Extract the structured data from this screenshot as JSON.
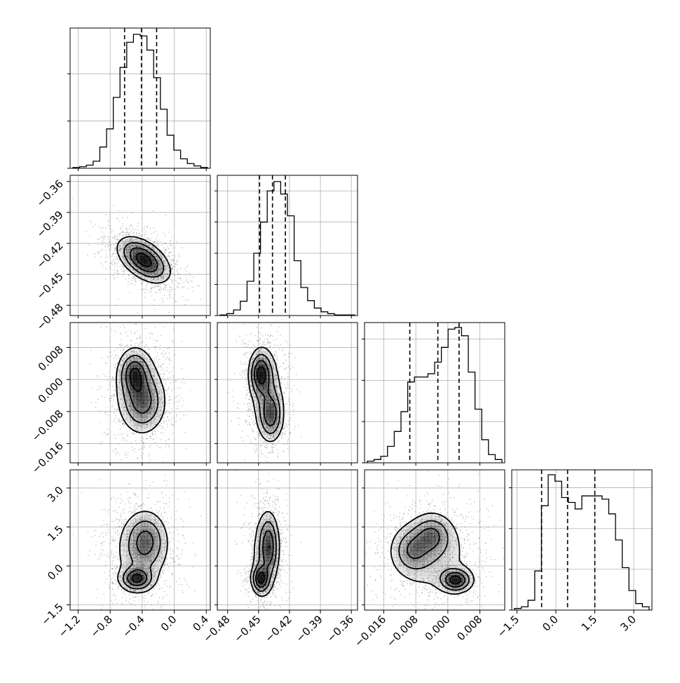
{
  "chart_data": {
    "type": "corner",
    "parameters": [
      {
        "ticks": [
          -1.2,
          -0.8,
          -0.4,
          0.0,
          0.4
        ],
        "tick_labels": [
          "−1.2",
          "−0.8",
          "−0.4",
          "0.0",
          "0.4"
        ],
        "range": [
          -1.3,
          0.45
        ],
        "quantiles": [
          -0.62,
          -0.41,
          -0.22
        ]
      },
      {
        "ticks": [
          -0.48,
          -0.45,
          -0.42,
          -0.39,
          -0.36
        ],
        "tick_labels": [
          "−0.48",
          "−0.45",
          "−0.42",
          "−0.39",
          "−0.36"
        ],
        "range": [
          -0.49,
          -0.354
        ],
        "quantiles": [
          -0.449,
          -0.4365,
          -0.424
        ]
      },
      {
        "ticks": [
          -0.016,
          -0.008,
          0.0,
          0.008
        ],
        "tick_labels": [
          "−0.016",
          "−0.008",
          "0.000",
          "0.008"
        ],
        "range": [
          -0.0208,
          0.0142
        ],
        "quantiles": [
          -0.0095,
          -0.0025,
          0.0028
        ]
      },
      {
        "ticks": [
          -1.5,
          0.0,
          1.5,
          3.0
        ],
        "tick_labels": [
          "−1.5",
          "0.0",
          "1.5",
          "3.0"
        ],
        "range": [
          -1.7,
          3.7
        ],
        "quantiles": [
          -0.55,
          0.45,
          1.5
        ]
      }
    ],
    "histograms": [
      [
        1,
        2,
        4,
        9,
        27,
        50,
        90,
        128,
        160,
        170,
        168,
        150,
        115,
        75,
        42,
        23,
        12,
        6,
        3,
        1
      ],
      [
        1,
        3,
        9,
        23,
        55,
        100,
        150,
        200,
        215,
        195,
        160,
        88,
        45,
        24,
        12,
        6,
        3,
        1,
        1,
        1
      ],
      [
        2,
        4,
        8,
        20,
        38,
        62,
        98,
        104,
        104,
        108,
        122,
        140,
        162,
        164,
        154,
        110,
        65,
        28,
        10,
        4
      ],
      [
        2,
        4,
        12,
        48,
        128,
        166,
        158,
        138,
        132,
        124,
        140,
        140,
        140,
        136,
        118,
        86,
        52,
        24,
        8,
        4
      ]
    ],
    "hist_ymax": [
      178,
      225,
      170,
      172
    ],
    "hist_yticks": [
      [
        0,
        60,
        120
      ],
      [
        0,
        50,
        100,
        150,
        200
      ],
      [
        0,
        50,
        100,
        150
      ],
      [
        0,
        50,
        100,
        150
      ]
    ],
    "joint": [
      {
        "row": 1,
        "col": 0,
        "rho": -0.5,
        "modes": [
          {
            "mx": -0.38,
            "my": -0.436,
            "sx": 0.17,
            "sy": 0.0115,
            "w": 1
          }
        ]
      },
      {
        "row": 2,
        "col": 0,
        "rho": 0,
        "modes": [
          {
            "mx": -0.5,
            "my": 0.0015,
            "sx": 0.1,
            "sy": 0.003,
            "w": 0.9
          },
          {
            "mx": -0.38,
            "my": -0.006,
            "sx": 0.15,
            "sy": 0.004,
            "w": 0.7
          },
          {
            "mx": -0.45,
            "my": -0.002,
            "sx": 0.17,
            "sy": 0.006,
            "w": 0.45
          }
        ]
      },
      {
        "row": 2,
        "col": 1,
        "rho": 0,
        "modes": [
          {
            "mx": -0.448,
            "my": 0.0015,
            "sx": 0.006,
            "sy": 0.0032,
            "w": 1
          },
          {
            "mx": -0.438,
            "my": -0.009,
            "sx": 0.0065,
            "sy": 0.0035,
            "w": 0.8
          },
          {
            "mx": -0.442,
            "my": -0.003,
            "sx": 0.009,
            "sy": 0.006,
            "w": 0.4
          }
        ]
      },
      {
        "row": 3,
        "col": 0,
        "rho": 0,
        "modes": [
          {
            "mx": -0.47,
            "my": -0.5,
            "sx": 0.11,
            "sy": 0.25,
            "w": 1
          },
          {
            "mx": -0.35,
            "my": 1.0,
            "sx": 0.14,
            "sy": 0.6,
            "w": 0.6
          },
          {
            "mx": -0.42,
            "my": 0.5,
            "sx": 0.2,
            "sy": 0.9,
            "w": 0.35
          }
        ]
      },
      {
        "row": 3,
        "col": 1,
        "rho": 0,
        "modes": [
          {
            "mx": -0.448,
            "my": -0.5,
            "sx": 0.0045,
            "sy": 0.3,
            "w": 1
          },
          {
            "mx": -0.44,
            "my": 0.8,
            "sx": 0.005,
            "sy": 0.65,
            "w": 0.75
          },
          {
            "mx": -0.444,
            "my": 0.4,
            "sx": 0.008,
            "sy": 1.0,
            "w": 0.35
          }
        ]
      },
      {
        "row": 3,
        "col": 2,
        "rho": 0,
        "modes": [
          {
            "mx": 0.002,
            "my": -0.55,
            "sx": 0.0022,
            "sy": 0.25,
            "w": 1
          },
          {
            "mx": -0.004,
            "my": 1.2,
            "sx": 0.0028,
            "sy": 0.45,
            "w": 0.55
          },
          {
            "mx": -0.009,
            "my": 0.6,
            "sx": 0.0028,
            "sy": 0.5,
            "w": 0.5
          },
          {
            "mx": -0.004,
            "my": 0.4,
            "sx": 0.006,
            "sy": 0.9,
            "w": 0.3
          }
        ]
      }
    ],
    "contour_levels": [
      0.15,
      0.35,
      0.6,
      0.85
    ],
    "colors": {
      "line": "#000000",
      "grid": "#b0b0b0",
      "scatter": "#000000",
      "density": "#000000"
    },
    "grid": true,
    "quantile_style": "dashed",
    "scatter_points_per_panel": 1500
  }
}
